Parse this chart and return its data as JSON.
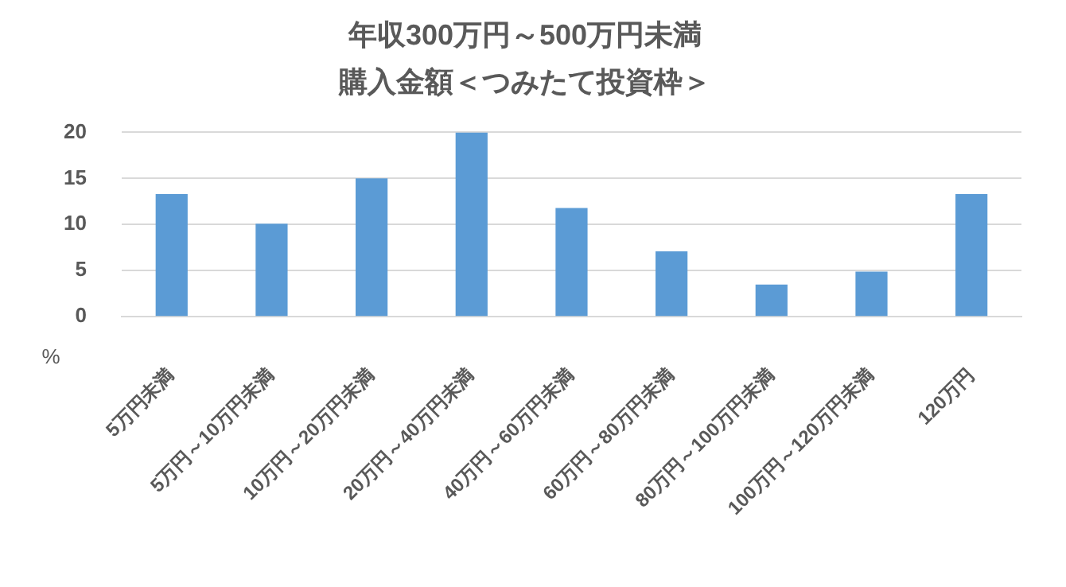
{
  "chart_data": {
    "type": "bar",
    "title": "年収300万円～500万円未満",
    "subtitle": "購入金額＜つみたて投資枠＞",
    "ylabel": "%",
    "categories": [
      "5万円未満",
      "5万円～10万円未満",
      "10万円～20万円未満",
      "20万円～40万円未満",
      "40万円～60万円未満",
      "60万円～80万円未満",
      "80万円～100万円未満",
      "100万円～120万円未満",
      "120万円"
    ],
    "values": [
      13.3,
      10.1,
      15,
      20,
      11.8,
      7.1,
      3.5,
      4.9,
      13.3
    ],
    "color": "#5b9bd5",
    "ylim": [
      0,
      20
    ],
    "yticks": [
      0,
      5,
      10,
      15,
      20
    ],
    "grid": "y",
    "legend": false
  }
}
